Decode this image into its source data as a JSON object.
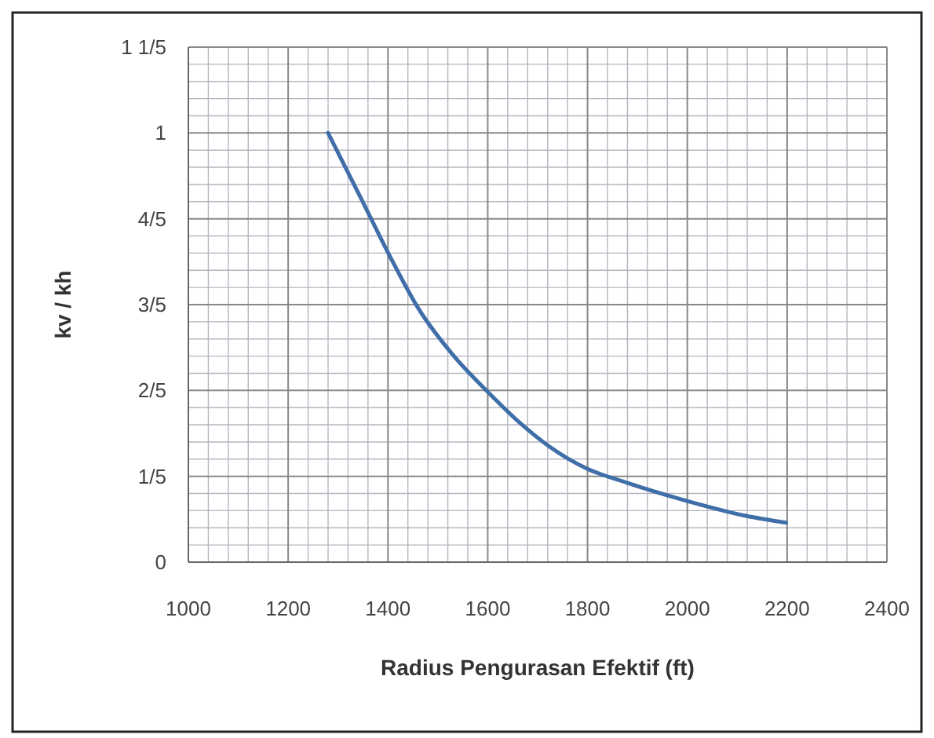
{
  "chart_data": {
    "type": "line",
    "xlabel": "Radius Pengurasan Efektif (ft)",
    "ylabel": "kv / kh",
    "x": [
      1280,
      1342,
      1402,
      1461,
      1533,
      1599,
      1664,
      1724,
      1795,
      1879,
      1998,
      2117,
      2198
    ],
    "series": [
      {
        "color": "#3f6ea8",
        "values": [
          1.0,
          0.857,
          0.717,
          0.591,
          0.479,
          0.398,
          0.325,
          0.269,
          0.22,
          0.185,
          0.143,
          0.108,
          0.092
        ]
      }
    ],
    "xlim": [
      1000,
      2400
    ],
    "xticks": [
      1000,
      1200,
      1400,
      1600,
      1800,
      2000,
      2200,
      2400
    ],
    "ylim": [
      0,
      1.2
    ],
    "yticks": [
      0,
      {
        "value": 0.2,
        "label": "1/5"
      },
      {
        "value": 0.4,
        "label": "2/5"
      },
      {
        "value": 0.6,
        "label": "3/5"
      },
      {
        "value": 0.8,
        "label": "4/5"
      },
      1,
      {
        "value": 1.2,
        "label": "1 1/5"
      }
    ],
    "grid": true,
    "marker": "none",
    "line_style": "solid"
  }
}
